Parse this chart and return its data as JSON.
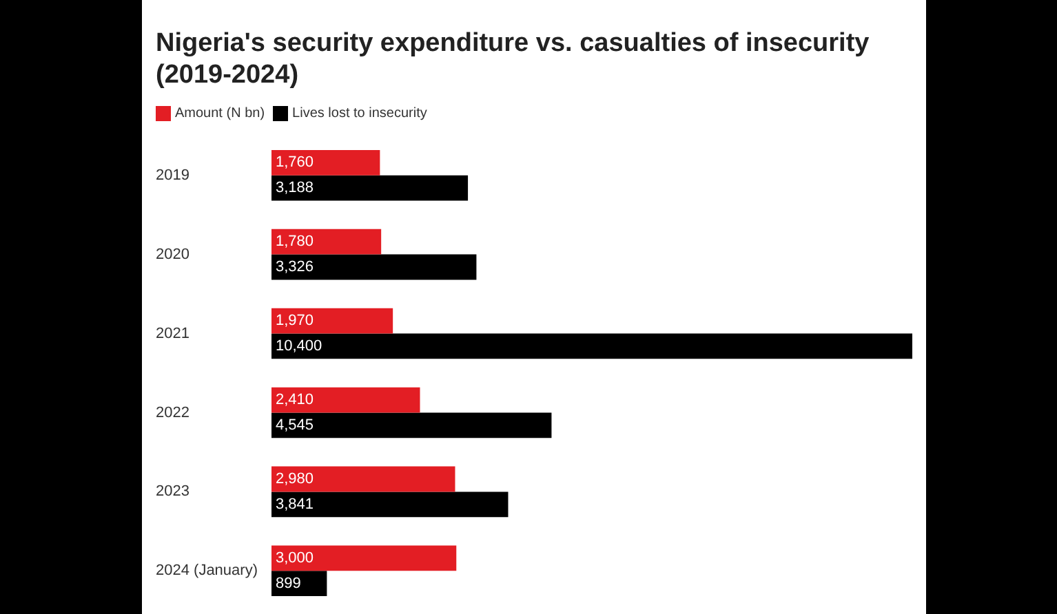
{
  "chart_data": {
    "type": "bar",
    "orientation": "horizontal",
    "title": "Nigeria's security expenditure vs. casualties of insecurity (2019-2024)",
    "categories": [
      "2019",
      "2020",
      "2021",
      "2022",
      "2023",
      "2024 (January)"
    ],
    "series": [
      {
        "name": "Amount (N bn)",
        "color": "#e31e24",
        "values": [
          1760,
          1780,
          1970,
          2410,
          2980,
          3000
        ],
        "value_labels": [
          "1,760",
          "1,780",
          "1,970",
          "2,410",
          "2,980",
          "3,000"
        ]
      },
      {
        "name": "Lives lost to insecurity",
        "color": "#000000",
        "values": [
          3188,
          3326,
          10400,
          4545,
          3841,
          899
        ],
        "value_labels": [
          "3,188",
          "3,326",
          "10,400",
          "4,545",
          "3,841",
          "899"
        ]
      }
    ],
    "legend": "top left"
  }
}
